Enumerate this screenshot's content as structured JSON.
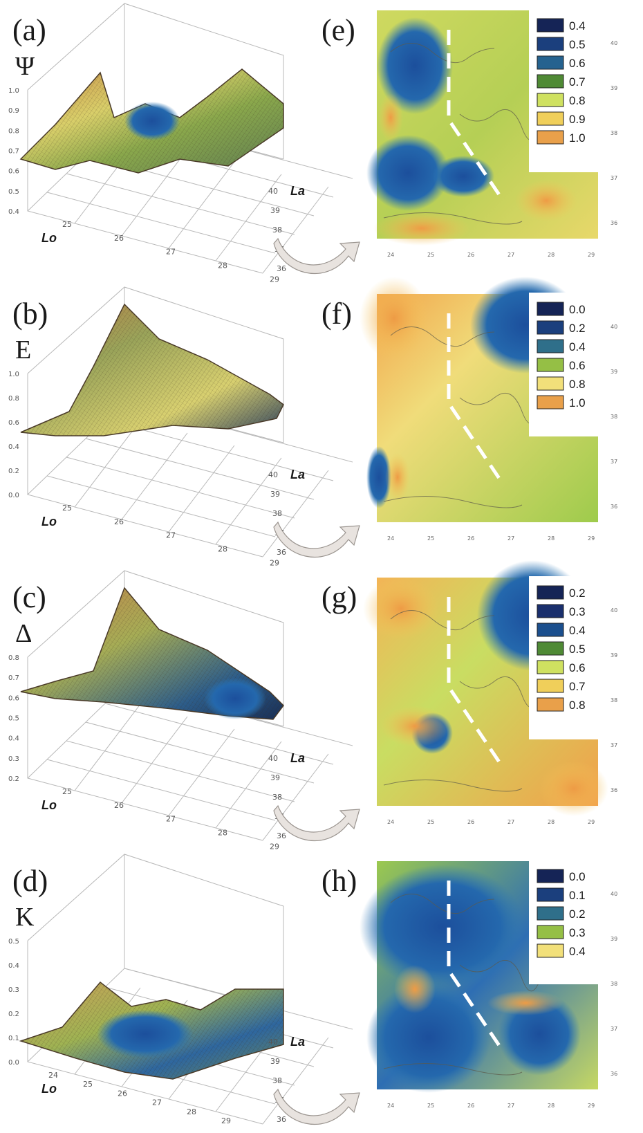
{
  "figure": {
    "panels": [
      {
        "surface_label": "(a)",
        "symbol": "Ψ",
        "map_label": "(e)",
        "z_ticks": [
          "1.0",
          "0.9",
          "0.8",
          "0.7",
          "0.6",
          "0.5",
          "0.4"
        ],
        "lo_ticks": [
          "25",
          "26",
          "27",
          "28",
          "29"
        ],
        "la_ticks": [
          "40",
          "39",
          "38",
          "37",
          "36"
        ],
        "lo_label": "Lo",
        "la_label": "La",
        "legend": [
          {
            "value": "0.4",
            "color": "#152456"
          },
          {
            "value": "0.5",
            "color": "#1b3f7d"
          },
          {
            "value": "0.6",
            "color": "#25628f"
          },
          {
            "value": "0.7",
            "color": "#4f8a35"
          },
          {
            "value": "0.8",
            "color": "#cfe160"
          },
          {
            "value": "0.9",
            "color": "#f0cf5a"
          },
          {
            "value": "1.0",
            "color": "#e9a04a"
          }
        ]
      },
      {
        "surface_label": "(b)",
        "symbol": "E",
        "map_label": "(f)",
        "z_ticks": [
          "1.0",
          "0.8",
          "0.6",
          "0.4",
          "0.2",
          "0.0"
        ],
        "lo_ticks": [
          "25",
          "26",
          "27",
          "28",
          "29"
        ],
        "la_ticks": [
          "40",
          "39",
          "38",
          "37",
          "36"
        ],
        "lo_label": "Lo",
        "la_label": "La",
        "legend": [
          {
            "value": "0.0",
            "color": "#152456"
          },
          {
            "value": "0.2",
            "color": "#1b3f7d"
          },
          {
            "value": "0.4",
            "color": "#2f6f8a"
          },
          {
            "value": "0.6",
            "color": "#95bf45"
          },
          {
            "value": "0.8",
            "color": "#f2e07a"
          },
          {
            "value": "1.0",
            "color": "#e9a04a"
          }
        ]
      },
      {
        "surface_label": "(c)",
        "symbol": "Δ",
        "map_label": "(g)",
        "z_ticks": [
          "0.8",
          "0.7",
          "0.6",
          "0.5",
          "0.4",
          "0.3",
          "0.2"
        ],
        "lo_ticks": [
          "25",
          "26",
          "27",
          "28",
          "29"
        ],
        "la_ticks": [
          "40",
          "39",
          "38",
          "37",
          "36"
        ],
        "lo_label": "Lo",
        "la_label": "La",
        "legend": [
          {
            "value": "0.2",
            "color": "#152456"
          },
          {
            "value": "0.3",
            "color": "#1a2f6d"
          },
          {
            "value": "0.4",
            "color": "#1b4f8e"
          },
          {
            "value": "0.5",
            "color": "#4f8a35"
          },
          {
            "value": "0.6",
            "color": "#cfe160"
          },
          {
            "value": "0.7",
            "color": "#f0cf5a"
          },
          {
            "value": "0.8",
            "color": "#e9a04a"
          }
        ]
      },
      {
        "surface_label": "(d)",
        "symbol": "K",
        "map_label": "(h)",
        "z_ticks": [
          "0.5",
          "0.4",
          "0.3",
          "0.2",
          "0.1",
          "0.0"
        ],
        "lo_ticks": [
          "24",
          "25",
          "26",
          "27",
          "28",
          "29"
        ],
        "la_ticks": [
          "40",
          "39",
          "38",
          "37",
          "36"
        ],
        "lo_label": "Lo",
        "la_label": "La",
        "legend": [
          {
            "value": "0.0",
            "color": "#152456"
          },
          {
            "value": "0.1",
            "color": "#1b3f7d"
          },
          {
            "value": "0.2",
            "color": "#2f6f8a"
          },
          {
            "value": "0.3",
            "color": "#95bf45"
          },
          {
            "value": "0.4",
            "color": "#f2e07a"
          }
        ]
      }
    ],
    "map_x_ticks": [
      "24",
      "25",
      "26",
      "27",
      "28",
      "29"
    ],
    "map_y_ticks": [
      "40",
      "39",
      "38",
      "37",
      "36"
    ]
  },
  "chart_data": [
    {
      "type": "heatmap",
      "panel": "(a)",
      "symbol": "Ψ",
      "zlim": [
        0.4,
        1.0
      ],
      "xlabel": "Lo",
      "ylabel": "La"
    },
    {
      "type": "heatmap",
      "panel": "(b)",
      "symbol": "E",
      "zlim": [
        0.0,
        1.0
      ],
      "xlabel": "Lo",
      "ylabel": "La"
    },
    {
      "type": "heatmap",
      "panel": "(c)",
      "symbol": "Δ",
      "zlim": [
        0.2,
        0.8
      ],
      "xlabel": "Lo",
      "ylabel": "La"
    },
    {
      "type": "heatmap",
      "panel": "(d)",
      "symbol": "K",
      "zlim": [
        0.0,
        0.5
      ],
      "xlabel": "Lo",
      "ylabel": "La"
    },
    {
      "type": "heatmap",
      "panel": "(e)",
      "legend": [
        "0.4",
        "0.5",
        "0.6",
        "0.7",
        "0.8",
        "0.9",
        "1.0"
      ]
    },
    {
      "type": "heatmap",
      "panel": "(f)",
      "legend": [
        "0.0",
        "0.2",
        "0.4",
        "0.6",
        "0.8",
        "1.0"
      ]
    },
    {
      "type": "heatmap",
      "panel": "(g)",
      "legend": [
        "0.2",
        "0.3",
        "0.4",
        "0.5",
        "0.6",
        "0.7",
        "0.8"
      ]
    },
    {
      "type": "heatmap",
      "panel": "(h)",
      "legend": [
        "0.0",
        "0.1",
        "0.2",
        "0.3",
        "0.4"
      ]
    }
  ]
}
